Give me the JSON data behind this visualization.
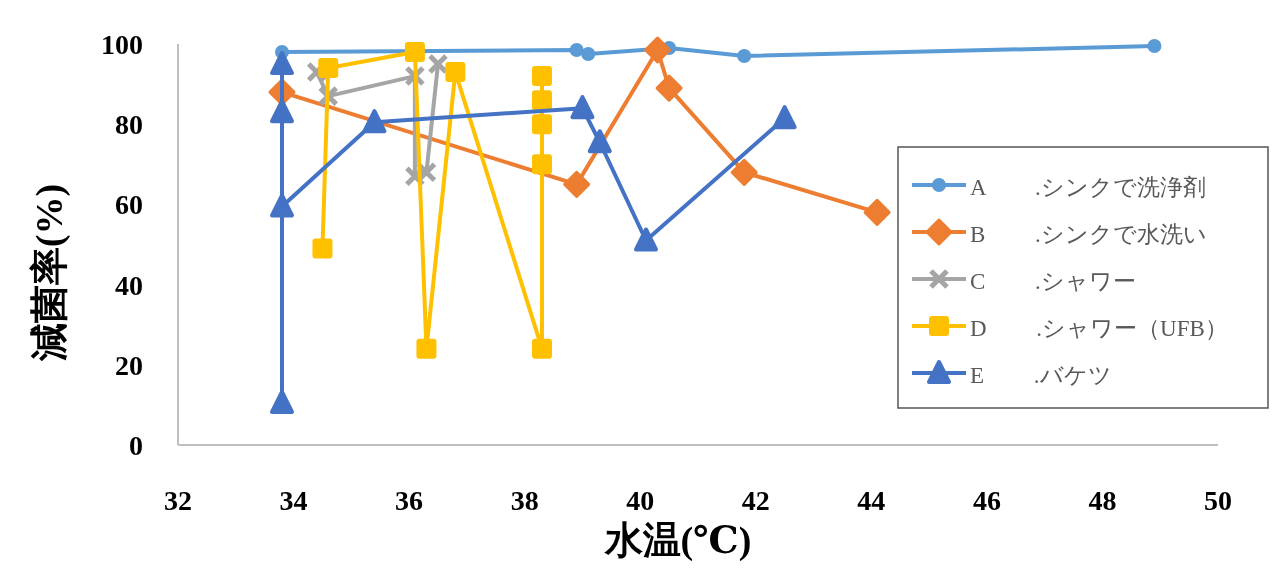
{
  "chart_data": {
    "type": "line",
    "xlabel": "水温(℃)",
    "ylabel": "減菌率(%)",
    "xlim": [
      32,
      50
    ],
    "ylim": [
      0,
      100
    ],
    "xticks": [
      32,
      34,
      36,
      38,
      40,
      42,
      44,
      46,
      48,
      50
    ],
    "yticks": [
      0,
      20,
      40,
      60,
      80,
      100
    ],
    "grid": false,
    "legend": "right",
    "series": [
      {
        "name": "A .シンクで洗浄剤",
        "color": "#5b9bd5",
        "marker": "circle",
        "x": [
          33.8,
          38.9,
          39.1,
          40.5,
          41.8,
          48.9
        ],
        "values": [
          98,
          98.5,
          97.5,
          99,
          97,
          99.5
        ]
      },
      {
        "name": "B .シンクで水洗い",
        "color": "#ed7d31",
        "marker": "diamond",
        "x": [
          33.8,
          38.9,
          40.3,
          40.5,
          41.8,
          44.1
        ],
        "values": [
          88,
          65,
          98.5,
          89,
          68,
          58
        ]
      },
      {
        "name": "C .シャワー",
        "color": "#a5a5a5",
        "marker": "cross",
        "x": [
          34.4,
          34.6,
          36.1,
          36.1,
          36.3,
          36.5
        ],
        "values": [
          93,
          87,
          92,
          67,
          68,
          95
        ]
      },
      {
        "name": "D .シャワー（UFB）",
        "color": "#ffc000",
        "marker": "square",
        "x": [
          34.5,
          34.6,
          36.1,
          36.3,
          36.8,
          38.3,
          38.3,
          38.3,
          38.3,
          38.3
        ],
        "values": [
          49,
          94,
          98,
          24,
          93,
          24,
          70,
          80,
          86,
          92
        ]
      },
      {
        "name": "E .バケツ",
        "color": "#4472c4",
        "marker": "triangle",
        "x": [
          33.8,
          33.8,
          33.8,
          33.8,
          35.4,
          39.0,
          39.3,
          40.1,
          42.5
        ],
        "values": [
          10.5,
          95,
          83,
          59.5,
          80.5,
          84,
          75.5,
          51,
          81.5
        ]
      }
    ]
  }
}
